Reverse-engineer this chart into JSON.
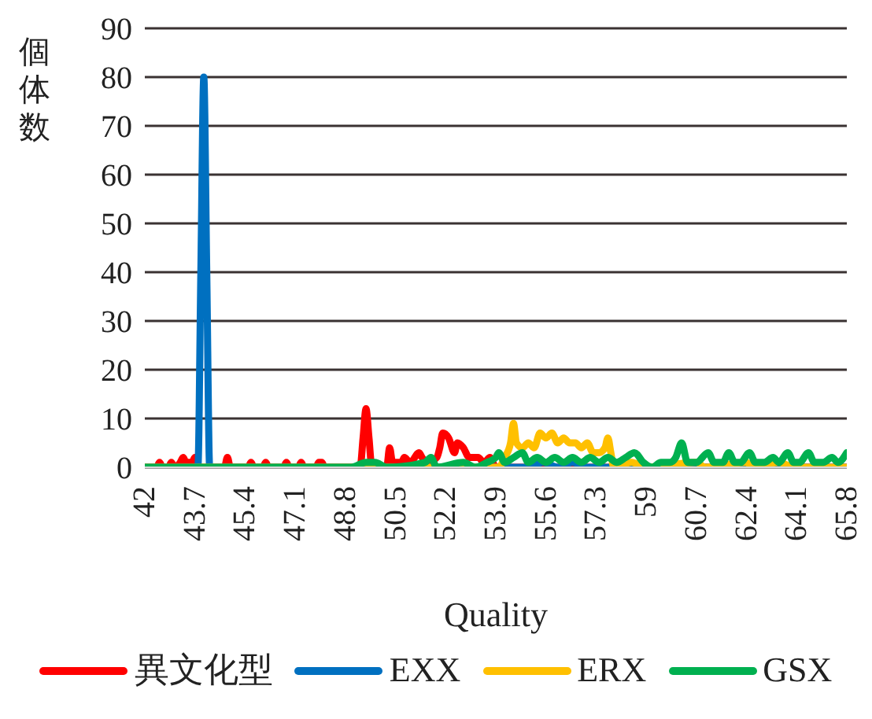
{
  "chart_data": {
    "type": "line",
    "xlabel": "Quality",
    "ylabel": "個体数",
    "xlim": [
      42,
      65.8
    ],
    "xticks": [
      42,
      43.7,
      45.4,
      47.1,
      48.8,
      50.5,
      52.2,
      53.9,
      55.6,
      57.3,
      59,
      60.7,
      62.4,
      64.1,
      65.8
    ],
    "ylim": [
      0,
      90
    ],
    "yticks": [
      0,
      10,
      20,
      30,
      40,
      50,
      60,
      70,
      80,
      90
    ],
    "grid": "y",
    "legend": "bottom",
    "marker": "none",
    "line_style": "solid",
    "series": [
      {
        "name": "異文化型",
        "color": "#ff0000",
        "x": [
          42,
          42.4,
          42.5,
          42.6,
          42.8,
          42.9,
          43.0,
          43.2,
          43.3,
          43.4,
          43.6,
          43.7,
          43.8,
          44.7,
          44.8,
          44.9,
          45.5,
          45.6,
          45.7,
          46.0,
          46.1,
          46.2,
          46.7,
          46.8,
          46.9,
          47.2,
          47.3,
          47.4,
          47.8,
          47.9,
          48.0,
          48.1,
          49.3,
          49.4,
          49.5,
          49.6,
          49.7,
          50.2,
          50.3,
          50.4,
          50.7,
          50.8,
          51.0,
          51.3,
          51.4,
          51.6,
          51.9,
          52.0,
          52.1,
          52.3,
          52.5,
          52.6,
          52.8,
          53.0,
          53.3,
          53.5,
          53.7,
          53.9,
          65.8
        ],
        "values": [
          0,
          0,
          1,
          0,
          0,
          1,
          0,
          1,
          2,
          1,
          1,
          2,
          0,
          0,
          2,
          0,
          0,
          1,
          0,
          0,
          1,
          0,
          0,
          1,
          0,
          0,
          1,
          0,
          0,
          1,
          1,
          0,
          0,
          6,
          12,
          6,
          0,
          0,
          4,
          1,
          1,
          2,
          1,
          3,
          2,
          1,
          2,
          4,
          7,
          6,
          3,
          5,
          4,
          2,
          2,
          1,
          2,
          0,
          0
        ]
      },
      {
        "name": "EXX",
        "color": "#0070c0",
        "x": [
          42,
          43.8,
          43.9,
          44.0,
          44.1,
          44.2,
          55,
          55.5,
          56,
          56.5,
          57,
          65.8
        ],
        "values": [
          0,
          0,
          40,
          80,
          40,
          0,
          0,
          1,
          0,
          1,
          0,
          0
        ]
      },
      {
        "name": "ERX",
        "color": "#ffc000",
        "x": [
          42,
          54.0,
          54.2,
          54.4,
          54.5,
          54.6,
          54.8,
          55.0,
          55.2,
          55.4,
          55.6,
          55.8,
          56.0,
          56.2,
          56.4,
          56.6,
          56.8,
          57.0,
          57.2,
          57.4,
          57.6,
          57.7,
          57.8,
          57.9,
          58.5,
          59,
          60.7,
          61,
          62.4,
          62.6,
          63.5,
          64,
          65.8
        ],
        "values": [
          0,
          0,
          2,
          5,
          9,
          5,
          4,
          5,
          4,
          7,
          6,
          7,
          5,
          6,
          5,
          5,
          4,
          5,
          3,
          3,
          4,
          6,
          3,
          0,
          1,
          0,
          1,
          0,
          1,
          0,
          1,
          0,
          0
        ]
      },
      {
        "name": "GSX",
        "color": "#00b050",
        "x": [
          42,
          49,
          49.5,
          49.8,
          50.2,
          51.5,
          51.7,
          51.9,
          52.8,
          53.2,
          53.6,
          53.9,
          54.0,
          54.2,
          54.5,
          54.8,
          55.0,
          55.3,
          55.6,
          55.9,
          56.2,
          56.5,
          56.8,
          57.1,
          57.4,
          57.7,
          58.0,
          58.3,
          58.6,
          58.9,
          59.2,
          59.5,
          59.8,
          60.0,
          60.2,
          60.4,
          60.7,
          61.1,
          61.3,
          61.6,
          61.8,
          62.0,
          62.2,
          62.5,
          62.7,
          63.0,
          63.3,
          63.5,
          63.8,
          64.0,
          64.2,
          64.5,
          64.7,
          65.0,
          65.3,
          65.5,
          65.8
        ],
        "values": [
          0,
          0,
          1,
          1,
          0,
          1,
          2,
          0,
          1,
          0,
          1,
          2,
          3,
          1,
          2,
          3,
          1,
          2,
          1,
          2,
          1,
          2,
          1,
          2,
          1,
          2,
          1,
          2,
          3,
          1,
          0,
          1,
          1,
          2,
          5,
          1,
          1,
          3,
          1,
          1,
          3,
          1,
          1,
          3,
          1,
          1,
          2,
          1,
          3,
          1,
          1,
          3,
          1,
          1,
          2,
          1,
          3
        ]
      }
    ]
  }
}
